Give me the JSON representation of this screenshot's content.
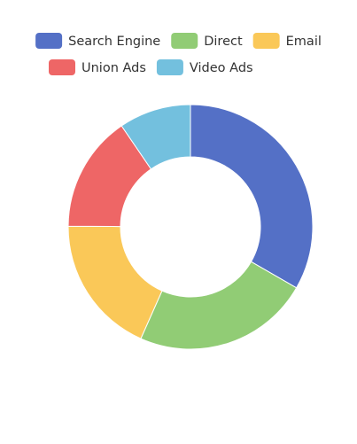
{
  "chart_data": {
    "type": "pie",
    "variant": "donut",
    "legend_placement": "top-center",
    "categories": [
      "Search Engine",
      "Direct",
      "Email",
      "Union Ads",
      "Video Ads"
    ],
    "values": [
      1048,
      735,
      580,
      484,
      300
    ],
    "colors": [
      "#5470c6",
      "#91cc75",
      "#fac858",
      "#ee6666",
      "#73c0de"
    ]
  }
}
